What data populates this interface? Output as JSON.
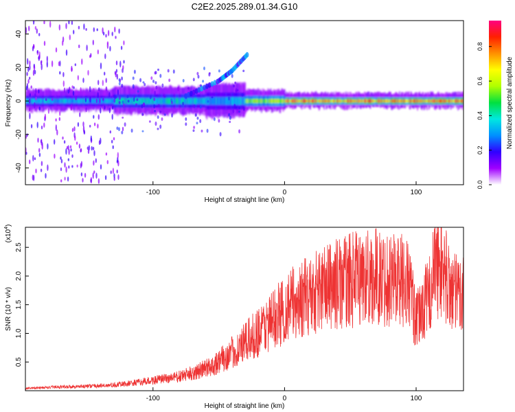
{
  "title": "C2E2.2025.289.01.34.G10",
  "chart_data": [
    {
      "type": "heatmap",
      "xlabel": "Height of straight line (km)",
      "ylabel": "Frequency (Hz)",
      "xlim": [
        -197,
        136
      ],
      "ylim": [
        -50,
        48
      ],
      "xticks": [
        -100,
        0,
        100
      ],
      "xtick_labels": [
        "-100",
        "0",
        "100"
      ],
      "yticks": [
        -40,
        -20,
        0,
        20,
        40
      ],
      "ytick_labels": [
        "-40",
        "-20",
        "0",
        "20",
        "40"
      ],
      "colorbar": {
        "label": "Normalized spectral amplitude",
        "range": [
          0,
          0.95
        ],
        "ticks": [
          0.0,
          0.2,
          0.4,
          0.6,
          0.8
        ],
        "tick_labels": [
          "0.0",
          "0.2",
          "0.4",
          "0.6",
          "0.8"
        ],
        "colors": [
          "#ffffff",
          "#a000ff",
          "#3000ff",
          "#0090ff",
          "#00e8e0",
          "#00e040",
          "#b0ff00",
          "#ffff00",
          "#ff9000",
          "#ff2000",
          "#ff0080"
        ]
      },
      "bands": [
        {
          "x": [
            -197,
            -130
          ],
          "freq_halfwidth": 3,
          "amp": 0.35
        },
        {
          "x": [
            -130,
            -60
          ],
          "freq_halfwidth": 4,
          "amp": 0.38
        },
        {
          "x": [
            -60,
            -30
          ],
          "freq_halfwidth": 5,
          "amp": 0.33
        },
        {
          "x": [
            -30,
            0
          ],
          "freq_halfwidth": 3,
          "amp": 0.55
        },
        {
          "x": [
            0,
            136
          ],
          "freq_halfwidth": 2,
          "amp": 0.78
        }
      ],
      "drift": [
        {
          "x": -75,
          "f": 3
        },
        {
          "x": -50,
          "f": 12
        },
        {
          "x": -40,
          "f": 18
        },
        {
          "x": -28,
          "f": 28
        }
      ]
    },
    {
      "type": "line",
      "xlabel": "Height of straight line (km)",
      "ylabel": "SNR (10 * v/v)",
      "y_multiplier": "(x10",
      "y_multiplier_exp": "4",
      "xlim": [
        -197,
        136
      ],
      "ylim": [
        0,
        2.85
      ],
      "xticks": [
        -100,
        0,
        100
      ],
      "xtick_labels": [
        "-100",
        "0",
        "100"
      ],
      "yticks": [
        0.5,
        1.0,
        1.5,
        2.0,
        2.5
      ],
      "ytick_labels": [
        "0.5",
        "1.0",
        "1.5",
        "2.0",
        "2.5"
      ],
      "color": "#ee3333",
      "envelope": {
        "x": [
          -197,
          -170,
          -150,
          -130,
          -110,
          -95,
          -80,
          -65,
          -55,
          -45,
          -35,
          -25,
          -15,
          -5,
          5,
          15,
          25,
          35,
          45,
          55,
          65,
          75,
          85,
          95,
          100,
          105,
          110,
          115,
          120,
          125,
          130,
          136
        ],
        "y": [
          0.04,
          0.07,
          0.08,
          0.1,
          0.15,
          0.2,
          0.25,
          0.35,
          0.45,
          0.6,
          0.75,
          0.95,
          1.15,
          1.35,
          1.55,
          1.65,
          1.8,
          1.88,
          1.95,
          2.0,
          2.05,
          2.0,
          2.05,
          1.9,
          1.2,
          1.5,
          1.7,
          2.3,
          2.2,
          1.9,
          1.7,
          1.8
        ]
      }
    }
  ]
}
